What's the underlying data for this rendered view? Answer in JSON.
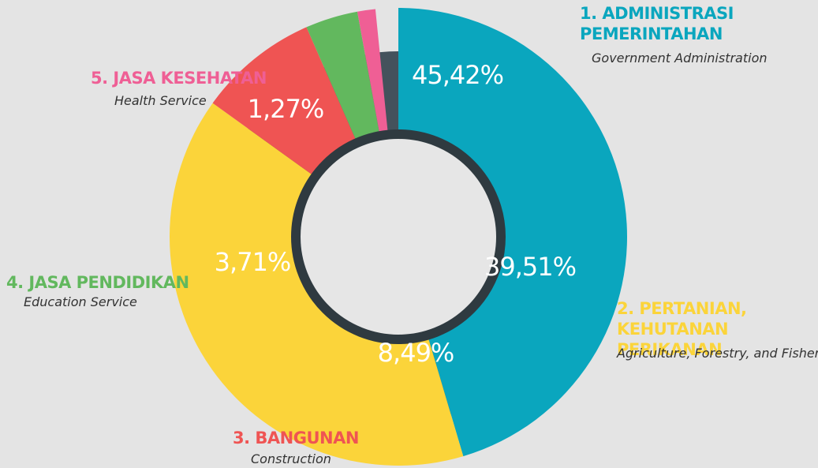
{
  "chart_data": {
    "type": "pie",
    "categories": [
      "1. ADMINISTRASI PEMERINTAHAN",
      "2. PERTANIAN, KEHUTANAN PERIKANAN",
      "3. BANGUNAN",
      "4. JASA PENDIDIKAN",
      "5. JASA KESEHATAN"
    ],
    "category_subtitles": [
      "Government Administration",
      "Agriculture, Forestry, and Fishery",
      "Construction",
      "Education Service",
      "Health Service"
    ],
    "values": [
      45.42,
      39.51,
      8.49,
      3.71,
      1.27
    ],
    "value_labels": [
      "45,42%",
      "39,51%",
      "8,49%",
      "3,71%",
      "1,27%"
    ],
    "colors": [
      "#0aa6be",
      "#fbd43a",
      "#ef5453",
      "#62b85e",
      "#ef5f95"
    ]
  }
}
